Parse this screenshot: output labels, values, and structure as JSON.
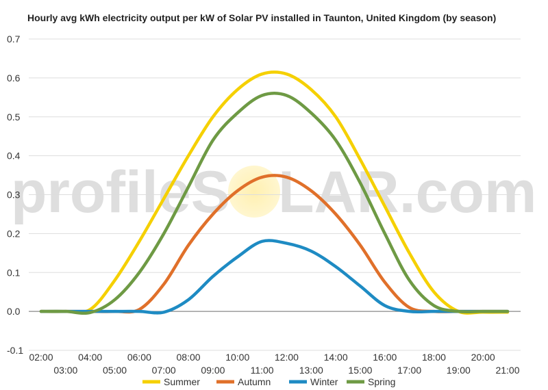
{
  "chart_data": {
    "type": "line",
    "title": "Hourly avg kWh electricity output per kW of Solar PV installed in Taunton, United Kingdom (by season)",
    "xlabel": "",
    "ylabel": "",
    "x": [
      "02:00",
      "03:00",
      "04:00",
      "05:00",
      "06:00",
      "07:00",
      "08:00",
      "09:00",
      "10:00",
      "11:00",
      "12:00",
      "13:00",
      "14:00",
      "15:00",
      "16:00",
      "17:00",
      "18:00",
      "19:00",
      "20:00",
      "21:00"
    ],
    "ylim": [
      -0.1,
      0.7
    ],
    "yticks": [
      "-0.1",
      "0.0",
      "0.1",
      "0.2",
      "0.3",
      "0.4",
      "0.5",
      "0.6",
      "0.7"
    ],
    "grid": true,
    "legend_position": "bottom",
    "series": [
      {
        "name": "Summer",
        "color": "#f5d000",
        "values": [
          0,
          0,
          0.005,
          0.08,
          0.18,
          0.29,
          0.4,
          0.5,
          0.57,
          0.61,
          0.61,
          0.57,
          0.5,
          0.39,
          0.27,
          0.15,
          0.05,
          0.0,
          -0.002,
          -0.002
        ]
      },
      {
        "name": "Autumn",
        "color": "#e0702a",
        "values": [
          0,
          0,
          0,
          0,
          0.005,
          0.07,
          0.17,
          0.25,
          0.31,
          0.345,
          0.345,
          0.31,
          0.25,
          0.17,
          0.075,
          0.01,
          0,
          0,
          0,
          0
        ]
      },
      {
        "name": "Winter",
        "color": "#1e8bc3",
        "values": [
          0,
          0,
          0,
          0,
          0,
          -0.002,
          0.03,
          0.09,
          0.14,
          0.18,
          0.175,
          0.155,
          0.115,
          0.065,
          0.015,
          0,
          0,
          0,
          0,
          0
        ]
      },
      {
        "name": "Spring",
        "color": "#6e9a44",
        "values": [
          0,
          0,
          -0.003,
          0.03,
          0.1,
          0.2,
          0.32,
          0.44,
          0.51,
          0.555,
          0.555,
          0.51,
          0.44,
          0.33,
          0.2,
          0.08,
          0.015,
          0,
          0,
          0
        ]
      }
    ]
  },
  "watermark": {
    "text_left": "profileS",
    "text_right": "LAR.com",
    "sun_color": "#fff0b0"
  }
}
